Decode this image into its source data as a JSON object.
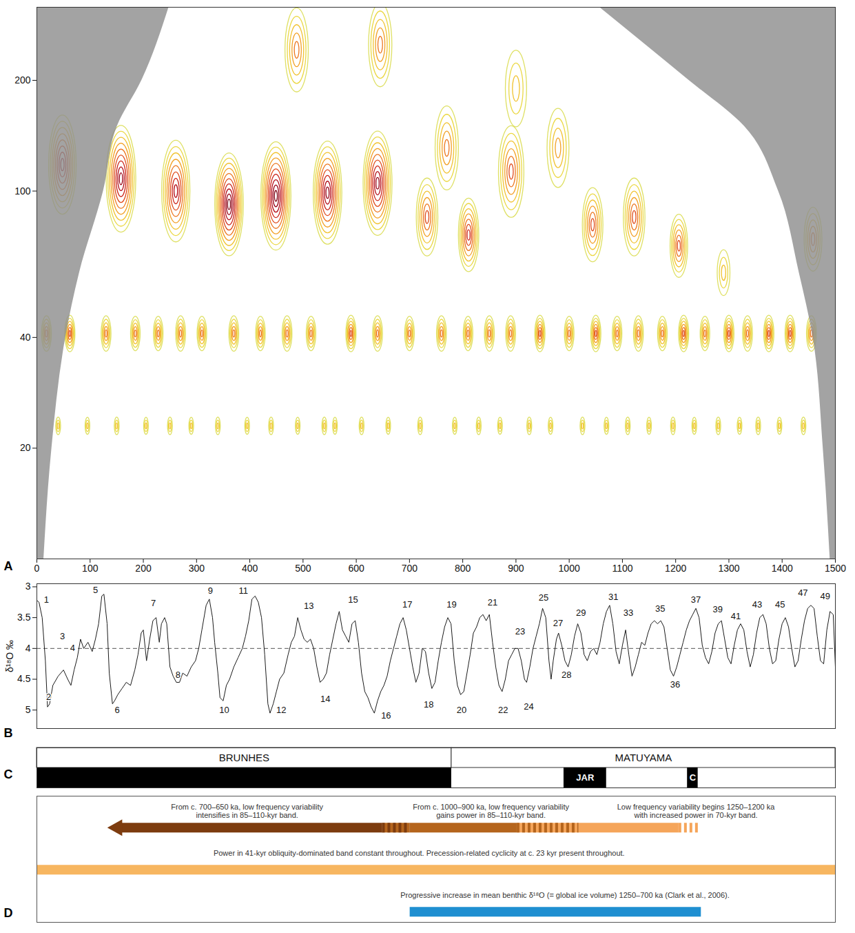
{
  "chart_data": [
    {
      "panel_label": "A",
      "type": "wavelet",
      "xlim": [
        0,
        1500
      ],
      "xticks": [
        0,
        100,
        200,
        300,
        400,
        500,
        600,
        700,
        800,
        900,
        1000,
        1100,
        1200,
        1300,
        1400,
        1500
      ],
      "ylim": [
        10,
        316
      ],
      "yticks": [
        20,
        40,
        100,
        200
      ],
      "log": "y",
      "power_lim": [
        0,
        1
      ],
      "peaks": {
        "x": [
          48,
          158,
          261,
          361,
          449,
          546,
          640,
          733,
          770,
          811,
          891,
          979,
          1044,
          1122,
          1206,
          1290,
          1458,
          488,
          645,
          900,
          18,
          62,
          130,
          185,
          228,
          270,
          310,
          370,
          420,
          470,
          515,
          590,
          640,
          700,
          760,
          810,
          850,
          890,
          945,
          1000,
          1050,
          1090,
          1130,
          1175,
          1215,
          1255,
          1300,
          1335,
          1375,
          1415,
          1455,
          40,
          95,
          150,
          205,
          250,
          290,
          340,
          395,
          440,
          490,
          540,
          560,
          610,
          660,
          720,
          785,
          830,
          870,
          925,
          965,
          1025,
          1070,
          1110,
          1150,
          1195,
          1235,
          1280,
          1320,
          1355,
          1395,
          1440
        ],
        "period": [
          118,
          108,
          100,
          92,
          97,
          99,
          105,
          85,
          131,
          76,
          113,
          131,
          81,
          85,
          71,
          60,
          74,
          242,
          250,
          190,
          41,
          41,
          41,
          41,
          41,
          41,
          41,
          41,
          41,
          41,
          41,
          41,
          41,
          41,
          41,
          41,
          41,
          41,
          41,
          41,
          41,
          41,
          41,
          41,
          41,
          41,
          41,
          41,
          41,
          41,
          41,
          23,
          23,
          23,
          23,
          23,
          23,
          23,
          23,
          23,
          23,
          23,
          23,
          23,
          23,
          23,
          23,
          23,
          23,
          23,
          23,
          23,
          23,
          23,
          23,
          23,
          23,
          23,
          23,
          23,
          23,
          23
        ],
        "power": [
          0.75,
          0.9,
          0.8,
          1.0,
          1.0,
          0.85,
          0.85,
          0.6,
          0.45,
          0.7,
          0.6,
          0.35,
          0.6,
          0.6,
          0.55,
          0.3,
          0.5,
          0.45,
          0.45,
          0.3,
          0.5,
          0.55,
          0.5,
          0.45,
          0.45,
          0.5,
          0.45,
          0.5,
          0.45,
          0.5,
          0.45,
          0.55,
          0.5,
          0.45,
          0.5,
          0.45,
          0.5,
          0.5,
          0.55,
          0.45,
          0.55,
          0.45,
          0.5,
          0.45,
          0.55,
          0.45,
          0.55,
          0.5,
          0.55,
          0.55,
          0.5,
          0.3,
          0.25,
          0.3,
          0.25,
          0.3,
          0.25,
          0.3,
          0.25,
          0.3,
          0.25,
          0.3,
          0.25,
          0.3,
          0.25,
          0.3,
          0.25,
          0.3,
          0.25,
          0.3,
          0.25,
          0.3,
          0.25,
          0.3,
          0.25,
          0.3,
          0.25,
          0.3,
          0.25,
          0.3,
          0.25,
          0.3
        ]
      },
      "cone_of_influence": {
        "period": [
          10,
          20,
          40,
          60,
          100,
          150,
          200,
          316
        ],
        "x_left": [
          13,
          28,
          54,
          80,
          125,
          151,
          197,
          248
        ],
        "x_right": [
          1490,
          1477,
          1458,
          1432,
          1393,
          1329,
          1225,
          1057
        ]
      }
    },
    {
      "panel_label": "B",
      "type": "line",
      "y_label": "δ¹⁸O ‰",
      "xlim": [
        0,
        1500
      ],
      "ylim": [
        5.3,
        2.95
      ],
      "yticks": [
        3,
        3.5,
        4,
        4.5,
        5
      ],
      "tick_labels": "y",
      "color": "#1a1a1a",
      "reference_line": {
        "value": 4,
        "line_style": "dashed"
      },
      "x": [
        0,
        4,
        10,
        16,
        20,
        24,
        30,
        40,
        50,
        58,
        64,
        70,
        76,
        82,
        88,
        96,
        104,
        110,
        116,
        122,
        126,
        132,
        136,
        142,
        146,
        152,
        160,
        168,
        176,
        184,
        190,
        196,
        200,
        206,
        212,
        218,
        224,
        230,
        234,
        240,
        244,
        250,
        256,
        262,
        268,
        274,
        282,
        290,
        298,
        304,
        310,
        318,
        324,
        330,
        334,
        340,
        344,
        350,
        356,
        362,
        370,
        378,
        386,
        392,
        398,
        404,
        410,
        416,
        422,
        428,
        434,
        438,
        444,
        450,
        456,
        464,
        472,
        478,
        484,
        490,
        496,
        502,
        508,
        514,
        520,
        526,
        532,
        538,
        544,
        550,
        556,
        562,
        568,
        574,
        580,
        586,
        592,
        598,
        604,
        610,
        616,
        622,
        628,
        634,
        640,
        646,
        652,
        658,
        664,
        670,
        676,
        682,
        688,
        694,
        700,
        706,
        712,
        718,
        724,
        730,
        736,
        742,
        748,
        754,
        760,
        766,
        772,
        778,
        784,
        790,
        796,
        802,
        808,
        814,
        820,
        826,
        832,
        838,
        844,
        850,
        856,
        862,
        868,
        874,
        880,
        886,
        892,
        898,
        904,
        910,
        916,
        920,
        926,
        932,
        938,
        944,
        950,
        956,
        962,
        966,
        970,
        976,
        980,
        986,
        992,
        998,
        1004,
        1010,
        1016,
        1022,
        1028,
        1034,
        1040,
        1046,
        1052,
        1058,
        1064,
        1070,
        1076,
        1082,
        1088,
        1094,
        1100,
        1106,
        1112,
        1118,
        1124,
        1130,
        1136,
        1142,
        1148,
        1154,
        1160,
        1166,
        1172,
        1178,
        1184,
        1190,
        1196,
        1202,
        1208,
        1214,
        1220,
        1226,
        1232,
        1238,
        1244,
        1250,
        1256,
        1262,
        1268,
        1274,
        1280,
        1286,
        1292,
        1298,
        1304,
        1310,
        1316,
        1322,
        1328,
        1334,
        1340,
        1346,
        1352,
        1358,
        1364,
        1370,
        1376,
        1382,
        1388,
        1394,
        1400,
        1406,
        1412,
        1418,
        1424,
        1430,
        1436,
        1442,
        1448,
        1454,
        1460,
        1466,
        1472,
        1478,
        1484,
        1490,
        1496,
        1500
      ],
      "values": [
        3.22,
        3.25,
        3.5,
        4.2,
        4.95,
        4.9,
        4.6,
        4.45,
        4.35,
        4.5,
        4.6,
        4.35,
        4.15,
        3.85,
        4.0,
        3.9,
        4.05,
        3.85,
        3.6,
        3.15,
        3.12,
        3.6,
        4.4,
        4.9,
        4.85,
        4.75,
        4.65,
        4.55,
        4.6,
        4.35,
        4.1,
        3.75,
        3.7,
        4.2,
        3.85,
        3.55,
        3.5,
        3.9,
        3.6,
        3.5,
        3.6,
        4.3,
        4.45,
        4.55,
        4.55,
        4.4,
        4.45,
        4.3,
        4.2,
        4.0,
        3.7,
        3.3,
        3.2,
        3.5,
        3.9,
        4.4,
        4.8,
        4.85,
        4.6,
        4.5,
        4.3,
        4.15,
        4.0,
        3.8,
        3.55,
        3.2,
        3.15,
        3.25,
        3.5,
        4.1,
        4.9,
        5.05,
        4.9,
        4.7,
        4.5,
        4.4,
        4.1,
        3.9,
        3.8,
        3.5,
        3.7,
        3.85,
        3.9,
        3.85,
        4.0,
        4.3,
        4.55,
        4.5,
        4.4,
        4.1,
        3.85,
        3.6,
        3.4,
        3.7,
        3.8,
        3.9,
        3.6,
        3.55,
        3.9,
        4.4,
        4.7,
        4.8,
        4.95,
        5.05,
        4.85,
        4.7,
        4.6,
        4.45,
        4.2,
        4.0,
        3.8,
        3.6,
        3.5,
        3.7,
        4.0,
        4.3,
        4.55,
        4.4,
        4.0,
        4.05,
        4.4,
        4.65,
        4.55,
        4.2,
        3.9,
        3.65,
        3.5,
        3.6,
        4.2,
        4.6,
        4.75,
        4.7,
        4.4,
        4.1,
        3.75,
        3.65,
        3.5,
        3.45,
        3.55,
        3.45,
        3.9,
        4.3,
        4.6,
        4.7,
        4.5,
        4.2,
        4.1,
        4.0,
        4.0,
        4.2,
        4.5,
        4.55,
        4.3,
        4.0,
        3.8,
        3.6,
        3.35,
        3.5,
        4.2,
        4.5,
        4.2,
        3.85,
        3.75,
        3.95,
        4.2,
        4.3,
        4.1,
        3.8,
        3.6,
        3.75,
        4.1,
        4.2,
        4.05,
        4.0,
        4.1,
        3.9,
        3.6,
        3.4,
        3.3,
        3.6,
        4.05,
        4.25,
        3.95,
        3.7,
        4.1,
        4.45,
        4.3,
        4.1,
        3.9,
        3.95,
        3.75,
        3.6,
        3.55,
        3.6,
        3.55,
        3.65,
        4.0,
        4.35,
        4.45,
        4.3,
        4.1,
        3.9,
        3.7,
        3.55,
        3.45,
        3.35,
        3.5,
        3.95,
        4.15,
        4.25,
        4.05,
        3.75,
        3.6,
        3.55,
        3.85,
        4.15,
        4.25,
        3.95,
        3.7,
        3.6,
        3.7,
        4.05,
        4.3,
        4.1,
        3.75,
        3.5,
        3.45,
        3.6,
        4.0,
        4.25,
        4.2,
        3.85,
        3.6,
        3.5,
        3.65,
        4.0,
        4.3,
        4.2,
        3.85,
        3.55,
        3.35,
        3.3,
        3.35,
        3.8,
        4.2,
        4.25,
        3.7,
        3.4,
        3.45,
        4.3
      ],
      "annotations": [
        {
          "text": "1",
          "x": 18,
          "y": 3.21
        },
        {
          "text": "2",
          "x": 22,
          "y": 4.79
        },
        {
          "text": "3",
          "x": 48,
          "y": 3.8
        },
        {
          "text": "4",
          "x": 67,
          "y": 3.99
        },
        {
          "text": "5",
          "x": 110,
          "y": 3.05
        },
        {
          "text": "6",
          "x": 151,
          "y": 5.0
        },
        {
          "text": "7",
          "x": 219,
          "y": 3.27
        },
        {
          "text": "8",
          "x": 265,
          "y": 4.43
        },
        {
          "text": "9",
          "x": 326,
          "y": 3.07
        },
        {
          "text": "10",
          "x": 352,
          "y": 5.0
        },
        {
          "text": "11",
          "x": 388,
          "y": 3.07
        },
        {
          "text": "12",
          "x": 459,
          "y": 5.0
        },
        {
          "text": "13",
          "x": 511,
          "y": 3.31
        },
        {
          "text": "14",
          "x": 542,
          "y": 4.82
        },
        {
          "text": "15",
          "x": 594,
          "y": 3.21
        },
        {
          "text": "16",
          "x": 656,
          "y": 5.09
        },
        {
          "text": "17",
          "x": 696,
          "y": 3.29
        },
        {
          "text": "18",
          "x": 736,
          "y": 4.91
        },
        {
          "text": "19",
          "x": 779,
          "y": 3.29
        },
        {
          "text": "20",
          "x": 798,
          "y": 5.0
        },
        {
          "text": "21",
          "x": 856,
          "y": 3.26
        },
        {
          "text": "22",
          "x": 876,
          "y": 5.0
        },
        {
          "text": "23",
          "x": 908,
          "y": 3.73
        },
        {
          "text": "24",
          "x": 924,
          "y": 4.95
        },
        {
          "text": "25",
          "x": 952,
          "y": 3.18
        },
        {
          "text": "27",
          "x": 979,
          "y": 3.59
        },
        {
          "text": "28",
          "x": 995,
          "y": 4.43
        },
        {
          "text": "29",
          "x": 1022,
          "y": 3.42
        },
        {
          "text": "31",
          "x": 1083,
          "y": 3.17
        },
        {
          "text": "33",
          "x": 1111,
          "y": 3.42
        },
        {
          "text": "35",
          "x": 1171,
          "y": 3.36
        },
        {
          "text": "36",
          "x": 1199,
          "y": 4.59
        },
        {
          "text": "37",
          "x": 1238,
          "y": 3.21
        },
        {
          "text": "39",
          "x": 1279,
          "y": 3.37
        },
        {
          "text": "41",
          "x": 1313,
          "y": 3.48
        },
        {
          "text": "43",
          "x": 1353,
          "y": 3.29
        },
        {
          "text": "45",
          "x": 1396,
          "y": 3.29
        },
        {
          "text": "47",
          "x": 1439,
          "y": 3.1
        },
        {
          "text": "49",
          "x": 1481,
          "y": 3.15
        }
      ]
    },
    {
      "panel_label": "C",
      "type": "magnetostratigraphy",
      "xlim": [
        0,
        1500
      ],
      "tick_labels": false,
      "color": "#000000",
      "chrons": [
        {
          "label": "BRUNHES",
          "x1": 0,
          "x2": 779
        },
        {
          "label": "MATUYAMA",
          "x1": 779,
          "x2": 1500
        }
      ],
      "normal_polarity": [
        {
          "x1": 0,
          "x2": 779,
          "label": null
        },
        {
          "x1": 990,
          "x2": 1070,
          "label": "JAR"
        },
        {
          "x1": 1222,
          "x2": 1242,
          "label": "C"
        }
      ]
    },
    {
      "panel_label": "D",
      "type": "timeline",
      "xlim": [
        0,
        1500
      ],
      "tick_labels": false,
      "bars": [
        {
          "marker": "arrow",
          "labels": [
            {
              "text": "From c. 700–650 ka, low frequency variability intensifies in 85–110-kyr band.",
              "x": 395
            },
            {
              "text": "From c. 1000–900 ka, low frequency variability gains power in 85–110-kyr band.",
              "x": 853
            },
            {
              "text": "Low frequency variability begins 1250–1200 ka with increased power in 70-kyr band.",
              "x": 1238
            }
          ],
          "segments": [
            {
              "x1": 151,
              "x2": 649,
              "color": "#7d3c0f"
            },
            {
              "x1": 649,
              "x2": 701,
              "color": "#7d3c0f",
              "line_style": "dashed"
            },
            {
              "x1": 701,
              "x2": 902,
              "color": "#b5651d"
            },
            {
              "x1": 902,
              "x2": 1018,
              "color": "#b5651d",
              "line_style": "dashed"
            },
            {
              "x1": 1018,
              "x2": 1206,
              "color": "#f5a55a"
            },
            {
              "x1": 1206,
              "x2": 1245,
              "color": "#f5a55a",
              "line_style": "dashed"
            }
          ]
        },
        {
          "labels": [
            {
              "text": "Power in 41-kyr obliquity-dominated band constant throughout. Precession-related cyclicity at c. 23 kyr present throughout.",
              "x": 718
            }
          ],
          "segments": [
            {
              "x1": 0,
              "x2": 1500,
              "color": "#f7b660"
            }
          ]
        },
        {
          "labels": [
            {
              "text": "Progressive increase in mean benthic δ¹⁸O (= global ice volume) 1250–700 ka (Clark et al., 2006).",
              "x": 992
            }
          ],
          "segments": [
            {
              "x1": 701,
              "x2": 1248,
              "color": "#1f8fd1"
            }
          ]
        }
      ]
    }
  ]
}
